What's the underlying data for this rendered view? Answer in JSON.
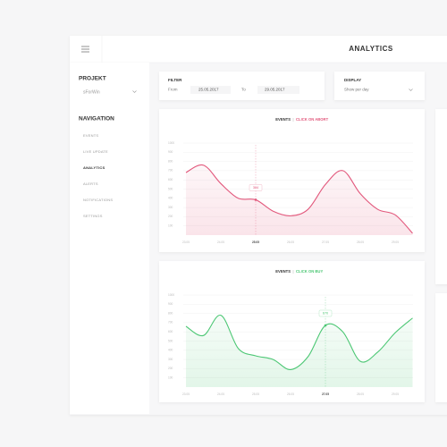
{
  "header": {
    "title": "ANALYTICS"
  },
  "sidebar": {
    "project_label": "PROJEKT",
    "project": "sForWin",
    "nav_title": "NAVIGATION",
    "items": [
      "EVENTS",
      "LIVE UPDATE",
      "ANALYTICS",
      "ALERTS",
      "NOTIFICATIONS",
      "SETTINGS"
    ],
    "active": 2
  },
  "filter": {
    "title": "FILTER",
    "from_label": "From",
    "from": "25.05.2017",
    "to_label": "To",
    "to": "29.05.2017"
  },
  "display": {
    "title": "DISPLAY",
    "value": "Show per day"
  },
  "chart_data": [
    {
      "type": "line",
      "title": "EVENTS",
      "subtitle": "CLICK ON ABORT",
      "categories": [
        "23.05",
        null,
        "24.05",
        null,
        "25.05",
        null,
        "26.05",
        null,
        "27.05",
        null,
        "28.05",
        null,
        "29.05",
        null
      ],
      "values": [
        680,
        760,
        560,
        400,
        384,
        260,
        210,
        280,
        550,
        700,
        450,
        280,
        220,
        20
      ],
      "color": "#e2587c",
      "ylim": [
        0,
        1000
      ],
      "yticks": [
        100,
        200,
        300,
        400,
        500,
        600,
        700,
        800,
        900,
        1000
      ],
      "grid": true,
      "highlight_index": 4,
      "highlight_label": "384"
    },
    {
      "type": "line",
      "title": "EVENTS",
      "subtitle": "CLICK ON BUY",
      "categories": [
        "23.05",
        null,
        "24.05",
        null,
        "25.05",
        null,
        "26.05",
        null,
        "27.05",
        null,
        "28.05",
        null,
        "29.05",
        null
      ],
      "values": [
        660,
        560,
        780,
        420,
        340,
        300,
        190,
        330,
        670,
        600,
        280,
        380,
        590,
        750
      ],
      "color": "#4cc774",
      "ylim": [
        0,
        1000
      ],
      "yticks": [
        100,
        200,
        300,
        400,
        500,
        600,
        700,
        800,
        900,
        1000
      ],
      "grid": true,
      "highlight_index": 8,
      "highlight_label": "670"
    }
  ]
}
